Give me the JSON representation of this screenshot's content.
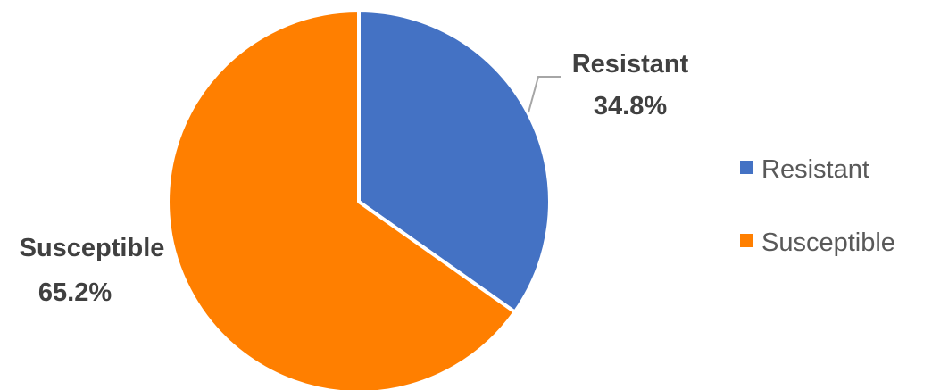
{
  "chart_data": {
    "type": "pie",
    "categories": [
      "Resistant",
      "Susceptible"
    ],
    "values": [
      34.8,
      65.2
    ],
    "labels": [
      "34.8%",
      "65.2%"
    ],
    "colors": [
      "#4472C4",
      "#FF7F00"
    ],
    "start_angle_deg": 0,
    "direction": "clockwise",
    "legend": {
      "position": "right",
      "entries": [
        "Resistant",
        "Susceptible"
      ]
    },
    "title": ""
  }
}
